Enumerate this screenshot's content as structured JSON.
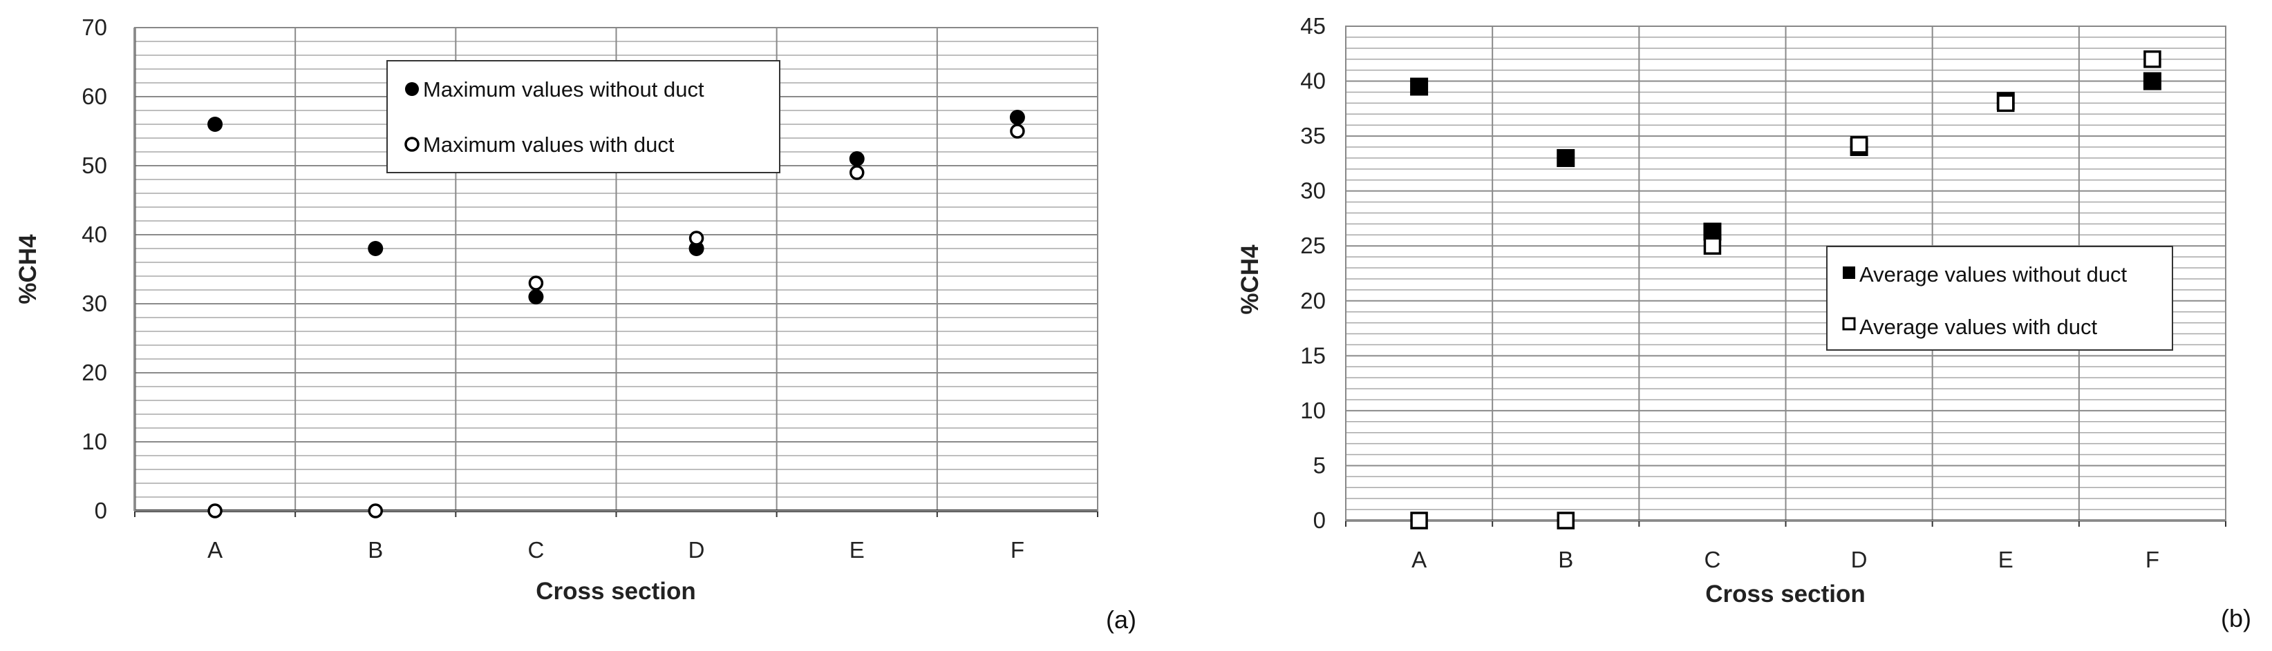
{
  "chart_data": [
    {
      "type": "scatter",
      "panel_label": "(a)",
      "xlabel": "Cross section",
      "ylabel": "%CH4",
      "categories": [
        "A",
        "B",
        "C",
        "D",
        "E",
        "F"
      ],
      "ylim": [
        0,
        70
      ],
      "yticks": [
        0,
        10,
        20,
        30,
        40,
        50,
        60,
        70
      ],
      "minor_step": 2,
      "grid": true,
      "legend_position": "top-center",
      "series": [
        {
          "name": "Maximum values without duct",
          "marker": "filled-circle",
          "values": [
            56,
            38,
            31,
            38,
            51,
            57
          ]
        },
        {
          "name": "Maximum values with duct",
          "marker": "open-circle",
          "values": [
            0,
            0,
            33,
            39.5,
            49,
            55
          ]
        }
      ]
    },
    {
      "type": "scatter",
      "panel_label": "(b)",
      "xlabel": "Cross section",
      "ylabel": "%CH4",
      "categories": [
        "A",
        "B",
        "C",
        "D",
        "E",
        "F"
      ],
      "ylim": [
        0,
        45
      ],
      "yticks": [
        0,
        5,
        10,
        15,
        20,
        25,
        30,
        35,
        40,
        45
      ],
      "minor_step": 1,
      "grid": true,
      "legend_position": "center-right",
      "series": [
        {
          "name": "Average values without duct",
          "marker": "filled-square",
          "values": [
            39.5,
            33,
            26.3,
            34,
            38.2,
            40
          ]
        },
        {
          "name": "Average values with duct",
          "marker": "open-square",
          "values": [
            0,
            0,
            25,
            34.2,
            38,
            42
          ]
        }
      ]
    }
  ]
}
